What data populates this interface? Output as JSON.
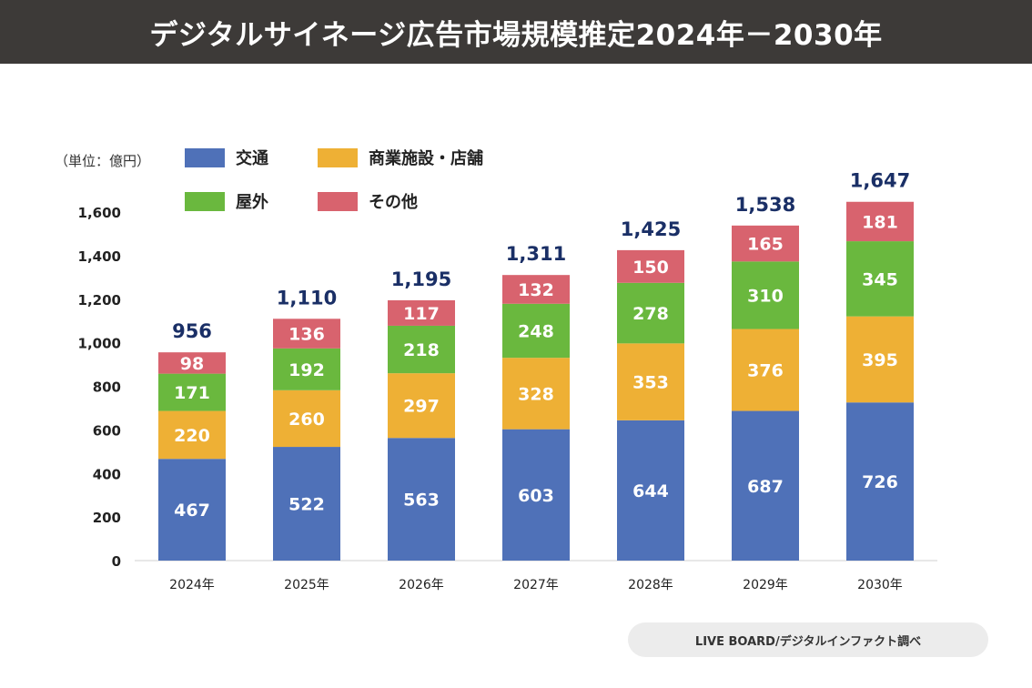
{
  "header": {
    "title": "デジタルサイネージ広告市場規模推定2024年－2030年"
  },
  "source": "LIVE BOARD/デジタルインファクト調べ",
  "chart_data": {
    "type": "bar",
    "stacked": true,
    "title": "デジタルサイネージ広告市場規模推定2024年－2030年",
    "unit_label": "（単位：億円）",
    "categories": [
      "2024年",
      "2025年",
      "2026年",
      "2027年",
      "2028年",
      "2029年",
      "2030年"
    ],
    "series": [
      {
        "name": "交通",
        "color": "#4f71b8",
        "values": [
          467,
          522,
          563,
          603,
          644,
          687,
          726
        ]
      },
      {
        "name": "商業施設・店舗",
        "color": "#eeb035",
        "values": [
          220,
          260,
          297,
          328,
          353,
          376,
          395
        ]
      },
      {
        "name": "屋外",
        "color": "#6ab83e",
        "values": [
          171,
          192,
          218,
          248,
          278,
          310,
          345
        ]
      },
      {
        "name": "その他",
        "color": "#d8636e",
        "values": [
          98,
          136,
          117,
          132,
          150,
          165,
          181
        ]
      }
    ],
    "totals": [
      "956",
      "1,110",
      "1,195",
      "1,311",
      "1,425",
      "1,538",
      "1,647"
    ],
    "ylim": [
      0,
      1600
    ],
    "yticks": [
      "0",
      "200",
      "400",
      "600",
      "800",
      "1,000",
      "1,200",
      "1,400",
      "1,600"
    ],
    "grid": false,
    "legend": "top-left",
    "total_color": "#1a2f66"
  }
}
